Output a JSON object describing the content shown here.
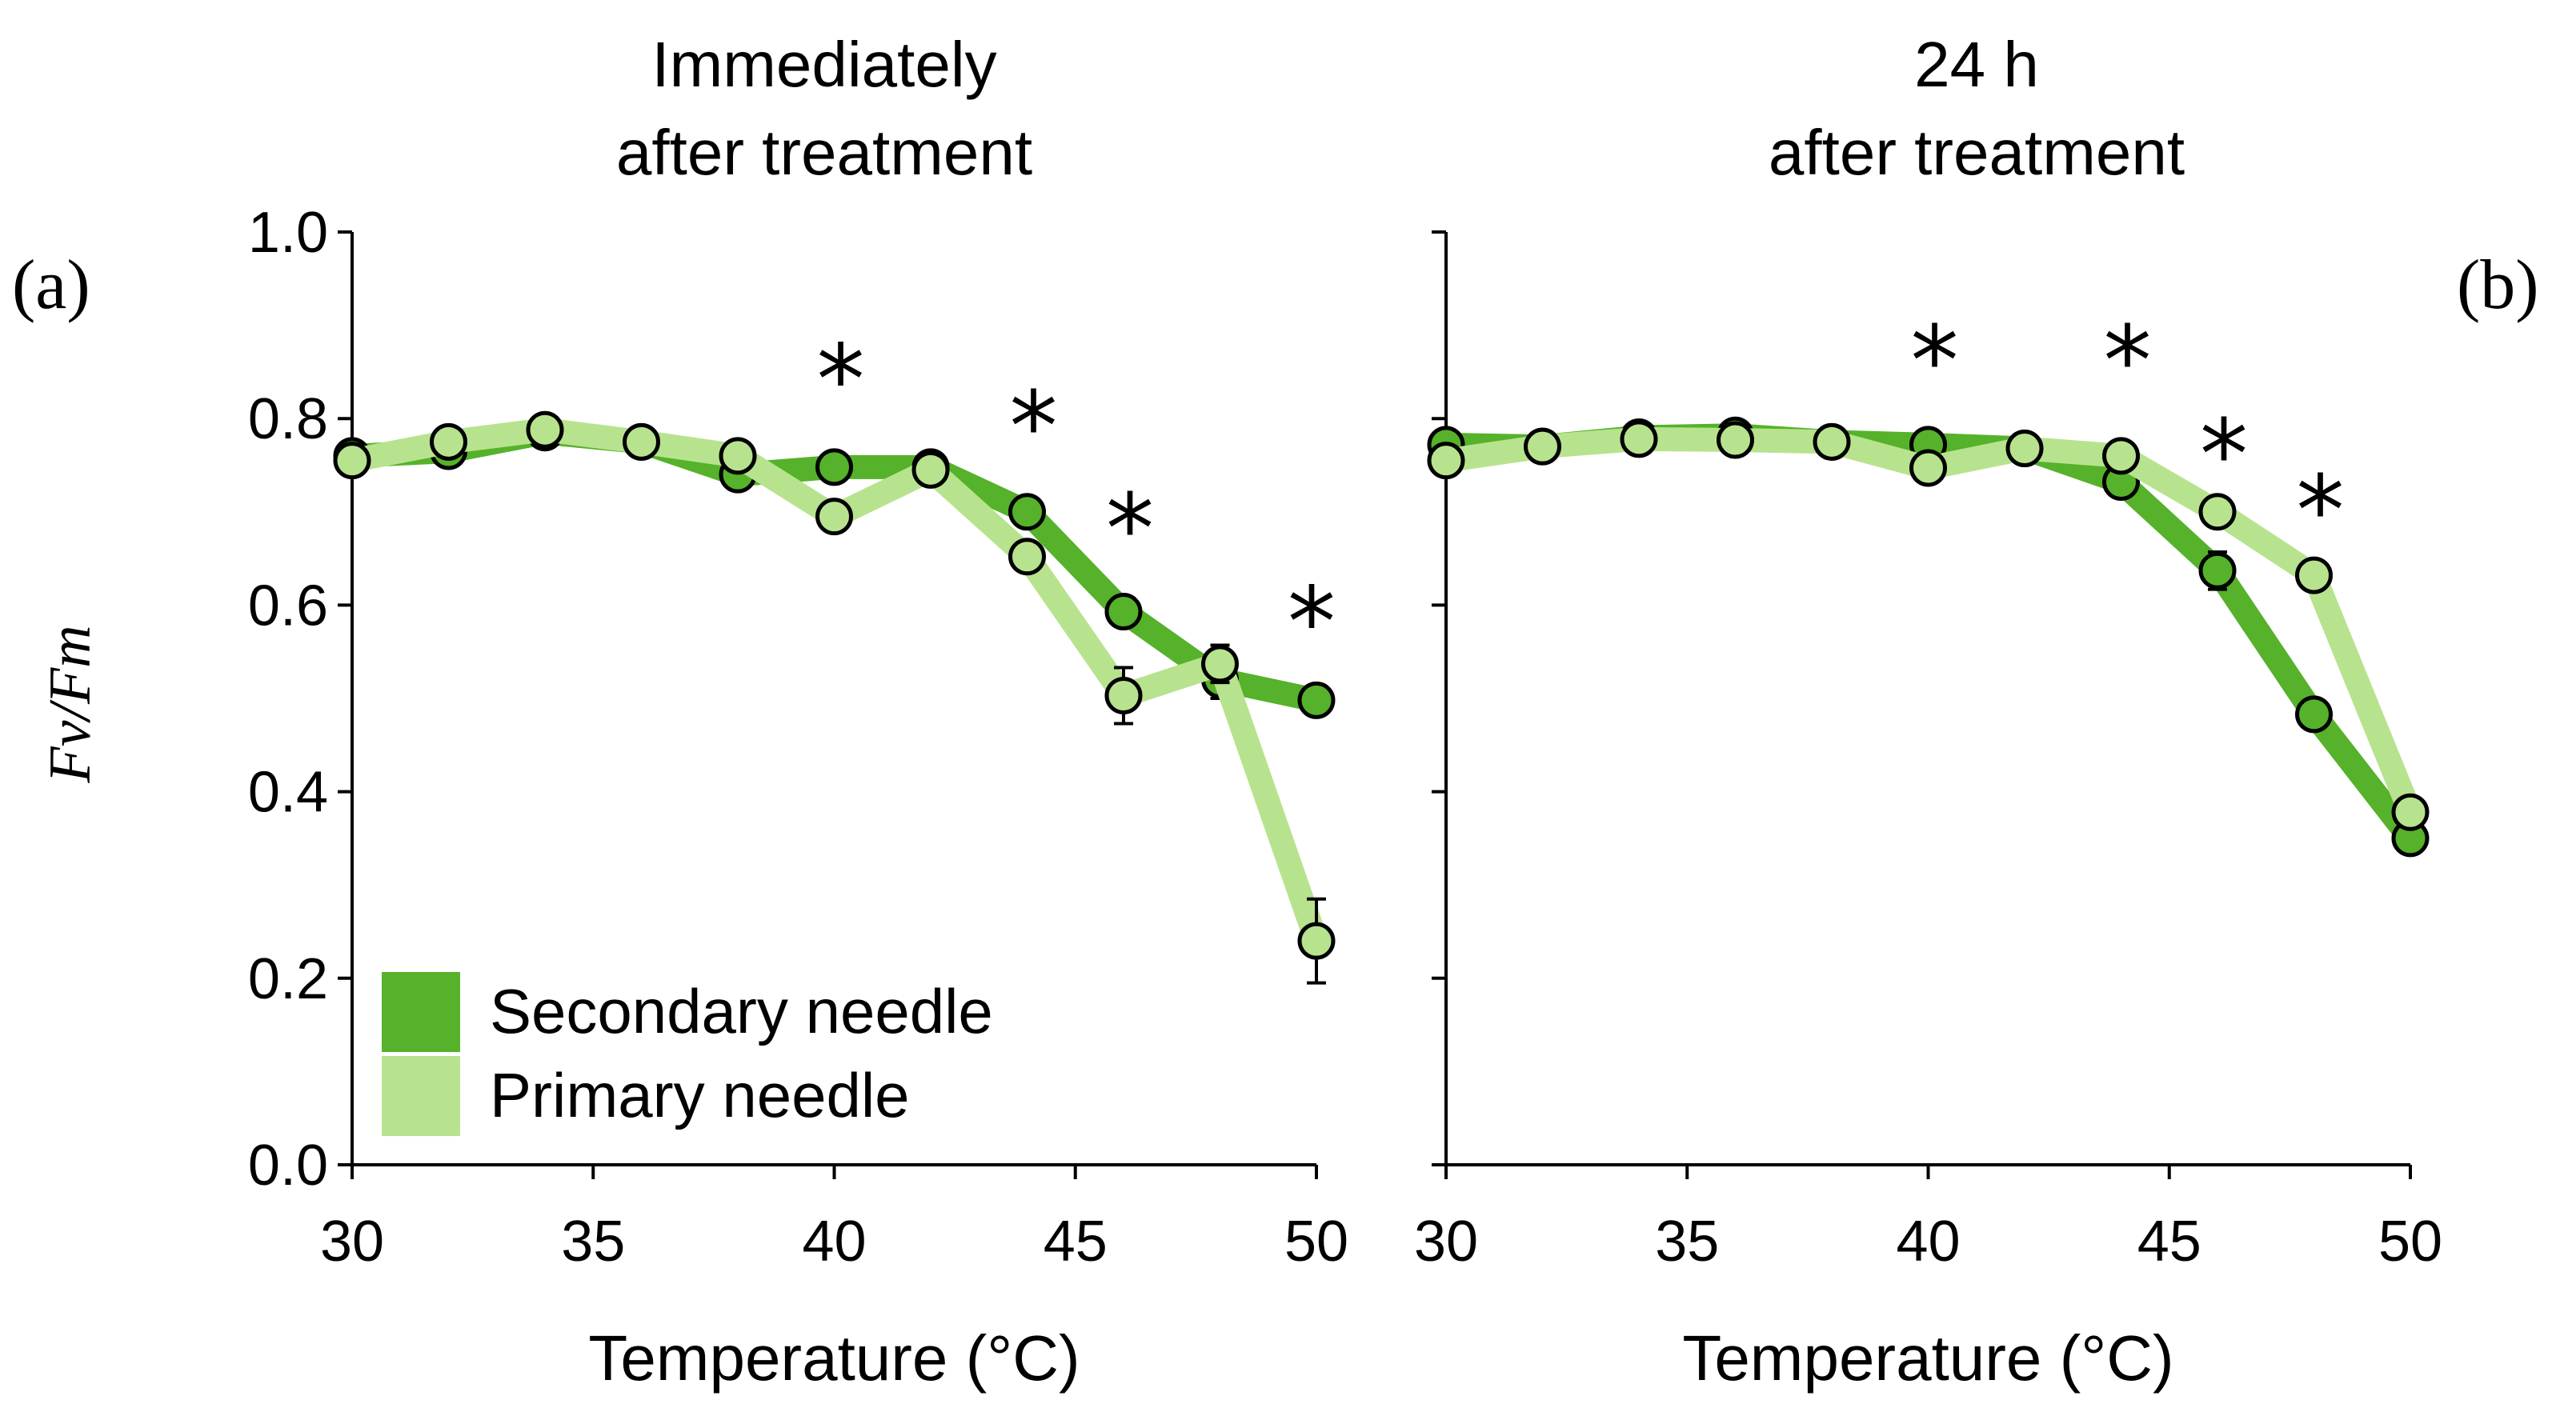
{
  "chart_data": [
    {
      "panel_label": "(a)",
      "title_lines": [
        "Immediately",
        "after treatment"
      ],
      "type": "line",
      "xlabel": "Temperature (°C)",
      "ylabel": "Fv/Fm",
      "xlim": [
        30,
        50
      ],
      "ylim": [
        0.0,
        1.0
      ],
      "xticks": [
        "30",
        "35",
        "40",
        "45",
        "50"
      ],
      "yticks": [
        "0.0",
        "0.2",
        "0.4",
        "0.6",
        "0.8",
        "1.0"
      ],
      "x": [
        30,
        32,
        34,
        36,
        38,
        40,
        42,
        44,
        46,
        48,
        50
      ],
      "series": [
        {
          "name": "Secondary needle",
          "color": "#55b22a",
          "values": [
            0.76,
            0.765,
            0.785,
            0.775,
            0.74,
            0.748,
            0.748,
            0.7,
            0.593,
            0.52,
            0.498
          ],
          "errors": [
            0.01,
            0.01,
            0.01,
            0.01,
            0.012,
            0.01,
            0.01,
            0.012,
            0.015,
            0.02,
            0.012
          ]
        },
        {
          "name": "Primary needle",
          "color": "#b8e38e",
          "values": [
            0.755,
            0.775,
            0.788,
            0.775,
            0.76,
            0.695,
            0.745,
            0.652,
            0.503,
            0.537,
            0.24
          ],
          "errors": [
            0.01,
            0.01,
            0.01,
            0.01,
            0.01,
            0.012,
            0.01,
            0.012,
            0.03,
            0.02,
            0.045
          ]
        }
      ],
      "significance_marks": [
        {
          "x": 40,
          "y": 0.84,
          "label": "*"
        },
        {
          "x": 44,
          "y": 0.79,
          "label": "*"
        },
        {
          "x": 46,
          "y": 0.68,
          "label": "*"
        },
        {
          "x": 50,
          "y": 0.58,
          "label": "*"
        }
      ],
      "legend": {
        "position": "bottom-left",
        "entries": [
          "Secondary needle",
          "Primary needle"
        ]
      }
    },
    {
      "panel_label": "(b)",
      "title_lines": [
        "24 h",
        "after treatment"
      ],
      "type": "line",
      "xlabel": "Temperature (°C)",
      "ylabel": "",
      "xlim": [
        30,
        50
      ],
      "ylim": [
        0.0,
        1.0
      ],
      "xticks": [
        "30",
        "35",
        "40",
        "45",
        "50"
      ],
      "yticks": [],
      "x": [
        30,
        32,
        34,
        36,
        38,
        40,
        42,
        44,
        46,
        48,
        50
      ],
      "series": [
        {
          "name": "Secondary needle",
          "color": "#55b22a",
          "values": [
            0.772,
            0.77,
            0.78,
            0.782,
            0.775,
            0.772,
            0.768,
            0.732,
            0.637,
            0.483,
            0.35
          ],
          "errors": [
            0.01,
            0.01,
            0.01,
            0.01,
            0.01,
            0.01,
            0.012,
            0.015,
            0.02,
            0.015,
            0.012
          ]
        },
        {
          "name": "Primary needle",
          "color": "#b8e38e",
          "values": [
            0.755,
            0.77,
            0.778,
            0.777,
            0.775,
            0.747,
            0.768,
            0.76,
            0.7,
            0.632,
            0.378
          ],
          "errors": [
            0.01,
            0.01,
            0.01,
            0.01,
            0.01,
            0.01,
            0.01,
            0.01,
            0.012,
            0.012,
            0.015
          ]
        }
      ],
      "significance_marks": [
        {
          "x": 40,
          "y": 0.86,
          "label": "*"
        },
        {
          "x": 44,
          "y": 0.86,
          "label": "*"
        },
        {
          "x": 46,
          "y": 0.76,
          "label": "*"
        },
        {
          "x": 48,
          "y": 0.7,
          "label": "*"
        }
      ]
    }
  ]
}
